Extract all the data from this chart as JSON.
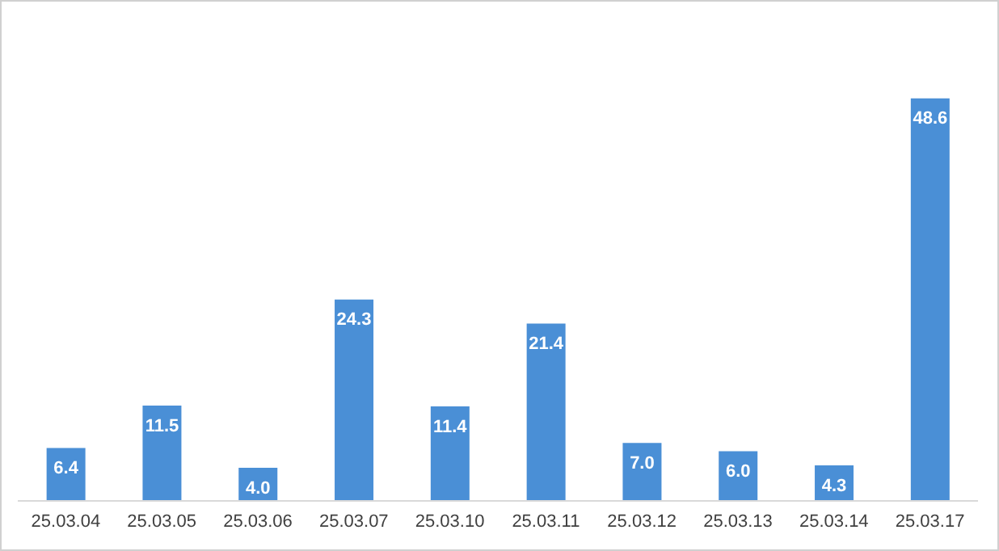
{
  "chart_data": {
    "type": "bar",
    "categories": [
      "25.03.04",
      "25.03.05",
      "25.03.06",
      "25.03.07",
      "25.03.10",
      "25.03.11",
      "25.03.12",
      "25.03.13",
      "25.03.14",
      "25.03.17"
    ],
    "values": [
      6.4,
      11.5,
      4.0,
      24.3,
      11.4,
      21.4,
      7.0,
      6.0,
      4.3,
      48.6
    ],
    "value_labels": [
      "6.4",
      "11.5",
      "4.0",
      "24.3",
      "11.4",
      "21.4",
      "7.0",
      "6.0",
      "4.3",
      "48.6"
    ],
    "color": "#4a8fd6"
  }
}
